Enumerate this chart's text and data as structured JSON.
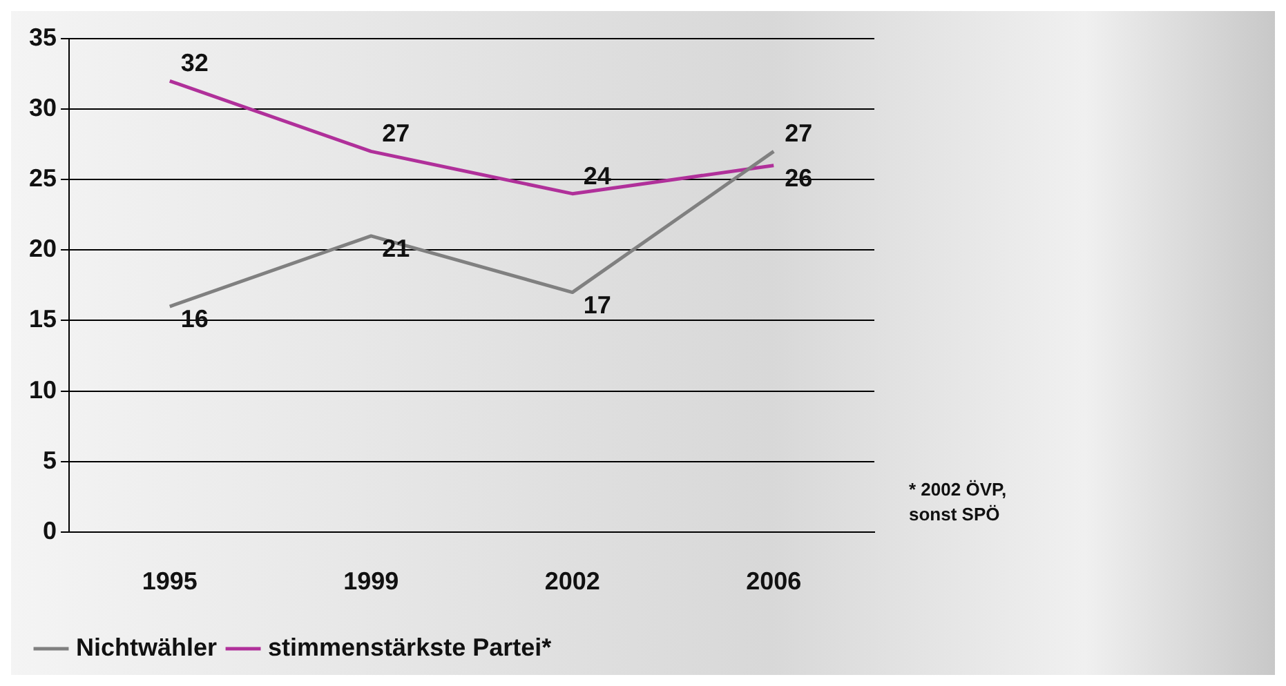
{
  "chart_data": {
    "type": "line",
    "categories": [
      "1995",
      "1999",
      "2002",
      "2006"
    ],
    "series": [
      {
        "name": "Nichtwähler",
        "color": "#808080",
        "values": [
          16,
          21,
          17,
          27
        ]
      },
      {
        "name": "stimmenstärkste Partei*",
        "color": "#b0309a",
        "values": [
          32,
          27,
          24,
          26
        ]
      }
    ],
    "ylim": [
      0,
      35
    ],
    "yticks": [
      0,
      5,
      10,
      15,
      20,
      25,
      30,
      35
    ],
    "grid": "y",
    "legend": "bottom",
    "marker": "none",
    "line_style": "solid",
    "data_labels": true,
    "annotations": [
      "* 2002 ÖVP, sonst SPÖ"
    ]
  }
}
